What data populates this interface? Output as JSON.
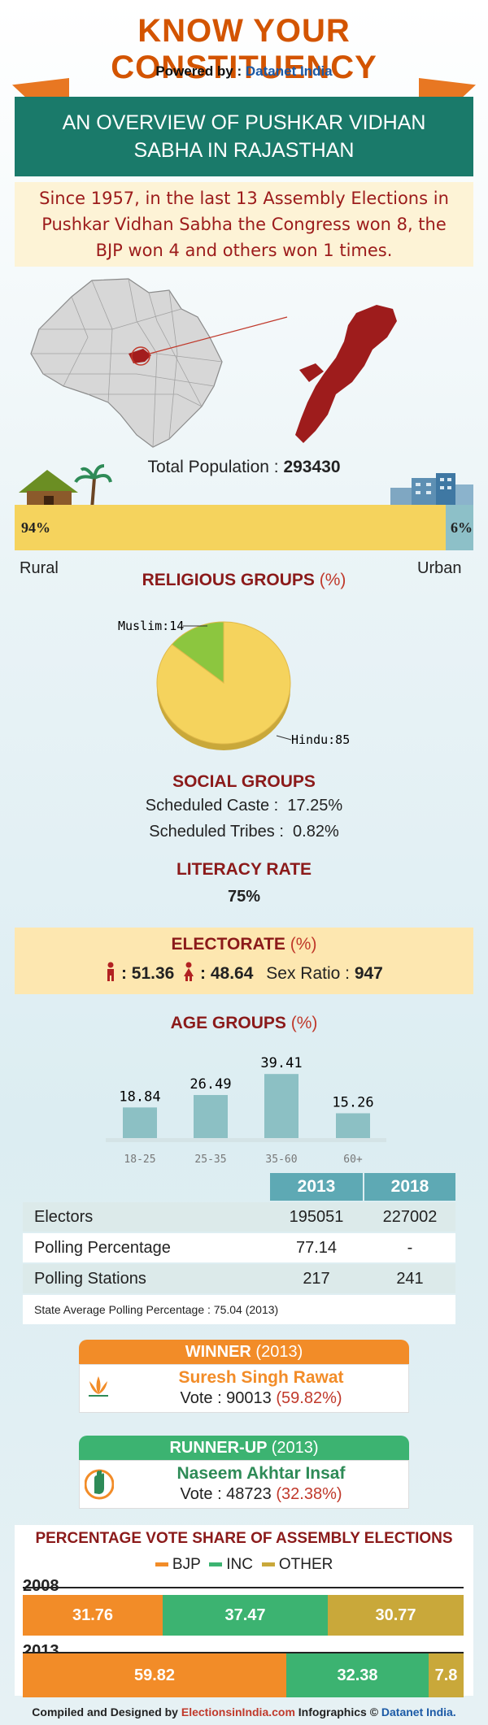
{
  "header": {
    "title": "KNOW YOUR CONSTITUENCY",
    "powered_label": "Powered by :",
    "powered_brand": "Datanet India",
    "banner_line1": "AN OVERVIEW OF PUSHKAR VIDHAN",
    "banner_line2": "SABHA IN RAJASTHAN"
  },
  "summary": {
    "line1": "Since 1957, in the last 13 Assembly Elections in",
    "line2": "Pushkar Vidhan Sabha the Congress won 8, the",
    "line3": "BJP won 4 and others won 1 times."
  },
  "population": {
    "label": "Total Population :",
    "value": "293430",
    "rural_pct_label": "94%",
    "urban_pct_label": "6%",
    "rural_label": "Rural",
    "urban_label": "Urban"
  },
  "religious": {
    "heading": "RELIGIOUS GROUPS",
    "heading_pct": "(%)"
  },
  "social": {
    "heading": "SOCIAL GROUPS",
    "sc_label": "Scheduled Caste :",
    "sc_value": "17.25%",
    "st_label": "Scheduled Tribes :",
    "st_value": "0.82%"
  },
  "literacy": {
    "heading": "LITERACY RATE",
    "value": "75%"
  },
  "electorate": {
    "heading": "ELECTORATE",
    "heading_pct": "(%)",
    "male": ": 51.36",
    "female": ": 48.64",
    "sex_ratio_label": "Sex Ratio :",
    "sex_ratio_value": "947"
  },
  "age": {
    "heading": "AGE GROUPS",
    "heading_pct": "(%)"
  },
  "elections_table": {
    "years": [
      "2013",
      "2018"
    ],
    "rows": [
      {
        "label": "Electors",
        "v2013": "195051",
        "v2018": "227002"
      },
      {
        "label": "Polling Percentage",
        "v2013": "77.14",
        "v2018": "-"
      },
      {
        "label": "Polling Stations",
        "v2013": "217",
        "v2018": "241"
      }
    ],
    "note": "State Average Polling Percentage : 75.04 (2013)"
  },
  "winner": {
    "heading": "WINNER",
    "year": "(2013)",
    "name": "Suresh Singh Rawat",
    "vote_label": "Vote : 90013",
    "vote_pct": "(59.82%)"
  },
  "runner_up": {
    "heading": "RUNNER-UP",
    "year": "(2013)",
    "name": "Naseem Akhtar Insaf",
    "vote_label": "Vote : 48723",
    "vote_pct": "(32.38%)"
  },
  "vote_share": {
    "heading": "PERCENTAGE VOTE SHARE OF ASSEMBLY ELECTIONS",
    "legend": [
      "BJP",
      "INC",
      "OTHER"
    ]
  },
  "footer": {
    "compiled": "Compiled and Designed by",
    "site": "ElectionsinIndia.com",
    "infographics": "Infographics ©",
    "brand": "Datanet India."
  },
  "colors": {
    "bjp": "#f28c28",
    "inc": "#3cb371",
    "other": "#c9a83a",
    "teal": "#1a7a6a",
    "age_bar": "#8cc0c4",
    "pie_hindu": "#f5d35d",
    "pie_muslim": "#8cc63f"
  },
  "chart_data": [
    {
      "type": "bar",
      "categories": [
        "Rural",
        "Urban"
      ],
      "values": [
        94,
        6
      ]
    },
    {
      "type": "pie",
      "title": "RELIGIOUS GROUPS (%)",
      "categories": [
        "Hindu",
        "Muslim"
      ],
      "values": [
        85,
        14
      ]
    },
    {
      "type": "bar",
      "title": "AGE GROUPS (%)",
      "categories": [
        "18-25",
        "25-35",
        "35-60",
        "60+"
      ],
      "values": [
        18.84,
        26.49,
        39.41,
        15.26
      ]
    },
    {
      "type": "bar",
      "title": "PERCENTAGE VOTE SHARE OF ASSEMBLY ELECTIONS",
      "categories": [
        "2008",
        "2013"
      ],
      "series": [
        {
          "name": "BJP",
          "values": [
            31.76,
            59.82
          ]
        },
        {
          "name": "INC",
          "values": [
            37.47,
            32.38
          ]
        },
        {
          "name": "OTHER",
          "values": [
            30.77,
            7.8
          ]
        }
      ]
    }
  ]
}
